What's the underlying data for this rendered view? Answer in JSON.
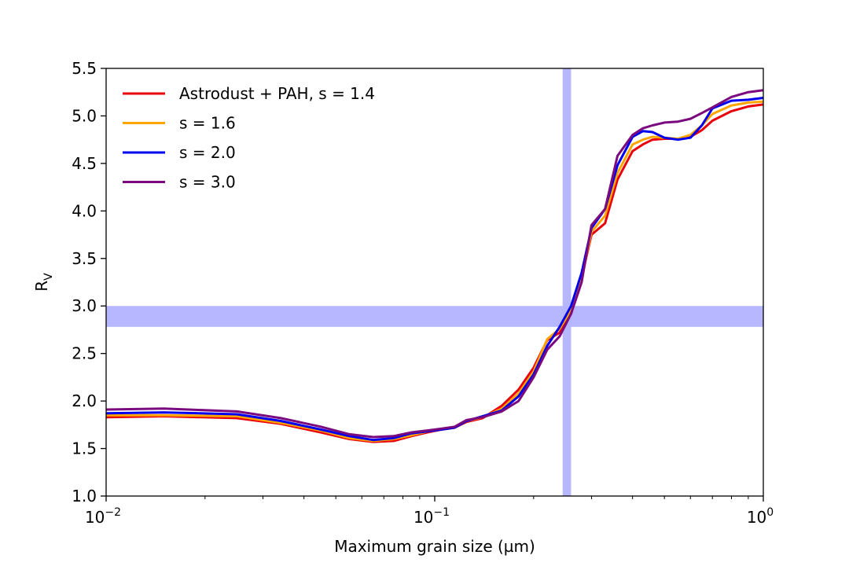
{
  "chart_data": {
    "type": "line",
    "xscale": "log",
    "xlabel": "Maximum grain size (µm)",
    "ylabel_main": "R",
    "ylabel_sub": "V",
    "xlim": [
      0.01,
      1.0
    ],
    "ylim": [
      1.0,
      5.5
    ],
    "x_ticks": [
      {
        "value": 0.01,
        "base": "10",
        "exp": "−2"
      },
      {
        "value": 0.1,
        "base": "10",
        "exp": "−1"
      },
      {
        "value": 1.0,
        "base": "10",
        "exp": "0"
      }
    ],
    "y_ticks": [
      {
        "value": 1.0,
        "label": "1.0"
      },
      {
        "value": 1.5,
        "label": "1.5"
      },
      {
        "value": 2.0,
        "label": "2.0"
      },
      {
        "value": 2.5,
        "label": "2.5"
      },
      {
        "value": 3.0,
        "label": "3.0"
      },
      {
        "value": 3.5,
        "label": "3.5"
      },
      {
        "value": 4.0,
        "label": "4.0"
      },
      {
        "value": 4.5,
        "label": "4.5"
      },
      {
        "value": 5.0,
        "label": "5.0"
      },
      {
        "value": 5.5,
        "label": "5.5"
      }
    ],
    "bands": [
      {
        "orientation": "horizontal",
        "from": 2.78,
        "to": 3.0,
        "color": "#b3b3ff"
      },
      {
        "orientation": "vertical",
        "from": 0.245,
        "to": 0.26,
        "color": "#b3b3ff"
      }
    ],
    "legend_position": "top-left",
    "series": [
      {
        "name": "Astrodust + PAH, s = 1.4",
        "color": "#e8000b",
        "x": [
          0.01,
          0.015,
          0.025,
          0.034,
          0.045,
          0.055,
          0.065,
          0.075,
          0.085,
          0.095,
          0.105,
          0.115,
          0.125,
          0.14,
          0.16,
          0.18,
          0.2,
          0.22,
          0.24,
          0.26,
          0.28,
          0.3,
          0.33,
          0.36,
          0.4,
          0.43,
          0.46,
          0.5,
          0.55,
          0.6,
          0.65,
          0.7,
          0.8,
          0.9,
          1.0
        ],
        "y": [
          1.83,
          1.84,
          1.82,
          1.76,
          1.67,
          1.6,
          1.57,
          1.58,
          1.63,
          1.67,
          1.7,
          1.72,
          1.78,
          1.82,
          1.95,
          2.12,
          2.35,
          2.64,
          2.72,
          2.92,
          3.3,
          3.75,
          3.87,
          4.33,
          4.63,
          4.7,
          4.75,
          4.76,
          4.76,
          4.78,
          4.85,
          4.95,
          5.05,
          5.1,
          5.12
        ]
      },
      {
        "name": "s = 1.6",
        "color": "#ffa500",
        "x": [
          0.01,
          0.015,
          0.025,
          0.034,
          0.045,
          0.055,
          0.065,
          0.075,
          0.085,
          0.095,
          0.105,
          0.115,
          0.125,
          0.14,
          0.16,
          0.18,
          0.2,
          0.22,
          0.24,
          0.26,
          0.28,
          0.3,
          0.33,
          0.36,
          0.4,
          0.43,
          0.46,
          0.5,
          0.55,
          0.6,
          0.65,
          0.7,
          0.8,
          0.9,
          1.0
        ],
        "y": [
          1.85,
          1.85,
          1.84,
          1.77,
          1.69,
          1.61,
          1.58,
          1.6,
          1.64,
          1.68,
          1.7,
          1.72,
          1.79,
          1.83,
          1.92,
          2.08,
          2.31,
          2.65,
          2.76,
          2.96,
          3.3,
          3.78,
          3.95,
          4.4,
          4.7,
          4.75,
          4.78,
          4.77,
          4.76,
          4.8,
          4.9,
          5.02,
          5.11,
          5.14,
          5.15
        ]
      },
      {
        "name": "s = 2.0",
        "color": "#0000ee",
        "x": [
          0.01,
          0.015,
          0.025,
          0.034,
          0.045,
          0.055,
          0.065,
          0.075,
          0.085,
          0.095,
          0.105,
          0.115,
          0.125,
          0.14,
          0.16,
          0.18,
          0.2,
          0.22,
          0.24,
          0.26,
          0.28,
          0.3,
          0.33,
          0.36,
          0.4,
          0.43,
          0.46,
          0.5,
          0.55,
          0.6,
          0.65,
          0.7,
          0.8,
          0.9,
          1.0
        ],
        "y": [
          1.87,
          1.88,
          1.86,
          1.79,
          1.7,
          1.63,
          1.59,
          1.61,
          1.66,
          1.68,
          1.7,
          1.72,
          1.79,
          1.84,
          1.9,
          2.05,
          2.28,
          2.58,
          2.78,
          3.0,
          3.35,
          3.82,
          4.02,
          4.48,
          4.78,
          4.84,
          4.83,
          4.77,
          4.75,
          4.77,
          4.9,
          5.08,
          5.16,
          5.17,
          5.19
        ]
      },
      {
        "name": "s = 3.0",
        "color": "#7b0a7e",
        "x": [
          0.01,
          0.015,
          0.025,
          0.034,
          0.045,
          0.055,
          0.065,
          0.075,
          0.085,
          0.095,
          0.105,
          0.115,
          0.125,
          0.14,
          0.16,
          0.18,
          0.2,
          0.22,
          0.24,
          0.26,
          0.28,
          0.3,
          0.33,
          0.36,
          0.4,
          0.43,
          0.46,
          0.5,
          0.55,
          0.6,
          0.65,
          0.7,
          0.8,
          0.9,
          1.0
        ],
        "y": [
          1.91,
          1.92,
          1.89,
          1.82,
          1.73,
          1.65,
          1.62,
          1.63,
          1.67,
          1.69,
          1.71,
          1.73,
          1.8,
          1.83,
          1.89,
          2.0,
          2.25,
          2.54,
          2.68,
          2.92,
          3.25,
          3.85,
          4.02,
          4.58,
          4.8,
          4.87,
          4.9,
          4.93,
          4.94,
          4.97,
          5.03,
          5.09,
          5.2,
          5.25,
          5.27
        ]
      }
    ]
  }
}
